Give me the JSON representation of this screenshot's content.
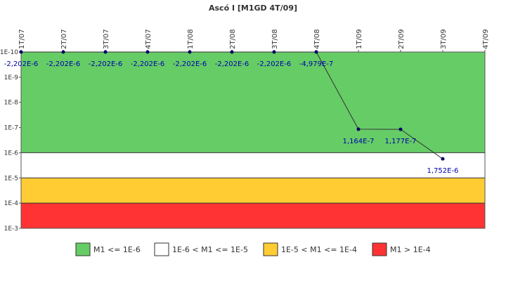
{
  "chart_data": {
    "type": "line",
    "title": "Ascó I [M1GD 4T/09]",
    "categories": [
      "1T/07",
      "2T/07",
      "3T/07",
      "4T/07",
      "1T/08",
      "2T/08",
      "3T/08",
      "4T/08",
      "1T/09",
      "2T/09",
      "3T/09",
      "4T/09"
    ],
    "series": [
      {
        "values": [
          -2.202e-06,
          -2.202e-06,
          -2.202e-06,
          -2.202e-06,
          -2.202e-06,
          -2.202e-06,
          -2.202e-06,
          -4.979e-07,
          1.164e-07,
          1.177e-07,
          1.752e-06,
          null
        ],
        "labels": [
          "-2,202E-6",
          "-2,202E-6",
          "-2,202E-6",
          "-2,202E-6",
          "-2,202E-6",
          "-2,202E-6",
          "-2,202E-6",
          "-4,979E-7",
          "1,164E-7",
          "1,177E-7",
          "1,752E-6",
          ""
        ],
        "color": "#000066"
      }
    ],
    "y_axis": {
      "scale": "log",
      "reversed": true,
      "min": 1e-10,
      "max": 0.001,
      "tick_labels": [
        "1E-10",
        "1E-9",
        "1E-8",
        "1E-7",
        "1E-6",
        "1E-5",
        "1E-4",
        "1E-3"
      ]
    },
    "bands": [
      {
        "from": 1e-10,
        "to": 1e-06,
        "color": "#66cc66",
        "label": "M1 <= 1E-6"
      },
      {
        "from": 1e-06,
        "to": 1e-05,
        "color": "#ffffff",
        "label": "1E-6 < M1 <= 1E-5"
      },
      {
        "from": 1e-05,
        "to": 0.0001,
        "color": "#ffcc33",
        "label": "1E-5 < M1 <= 1E-4"
      },
      {
        "from": 0.0001,
        "to": 0.001,
        "color": "#ff3333",
        "label": "M1 > 1E-4"
      }
    ],
    "legend": {
      "position": "bottom"
    }
  }
}
